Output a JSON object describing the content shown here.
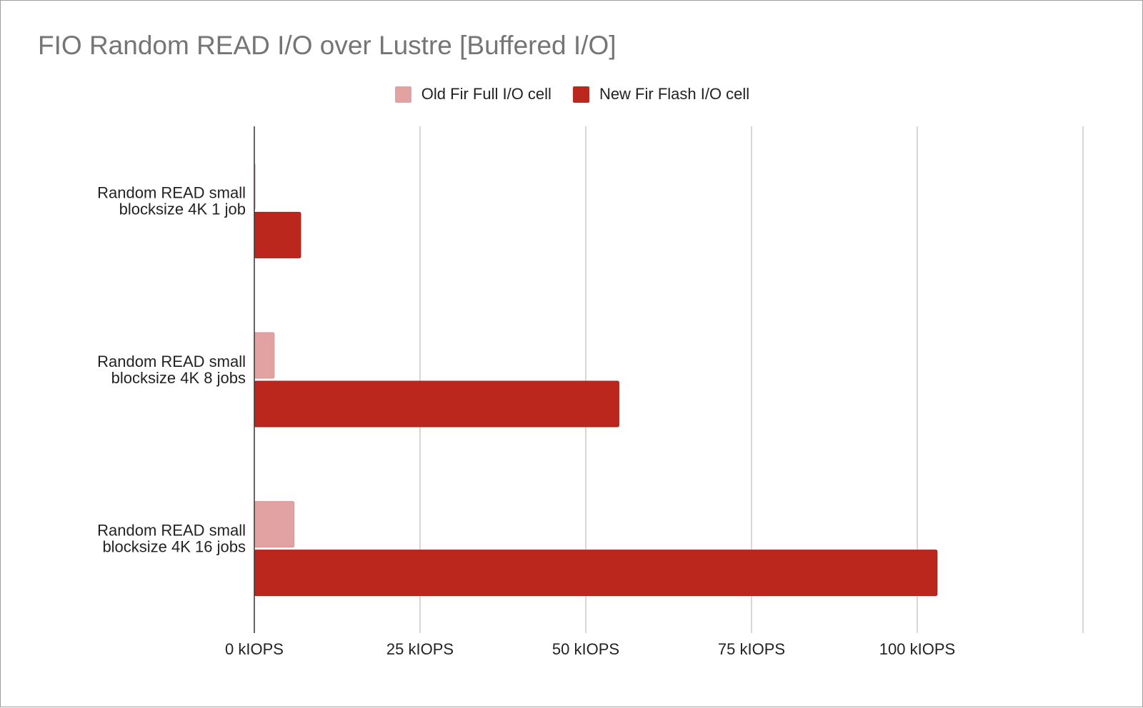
{
  "chart_data": {
    "type": "bar",
    "orientation": "horizontal",
    "title": "FIO Random READ I/O over Lustre [Buffered I/O]",
    "categories": [
      [
        "Random READ small",
        "blocksize 4K 1 job"
      ],
      [
        "Random READ small",
        "blocksize 4K 8 jobs"
      ],
      [
        "Random READ small",
        "blocksize 4K 16 jobs"
      ]
    ],
    "series": [
      {
        "name": "Old Fir Full I/O cell",
        "color": "#e2a2a2",
        "values": [
          0.1,
          3,
          6
        ]
      },
      {
        "name": "New Fir Flash I/O cell",
        "color": "#bb271d",
        "values": [
          7,
          55,
          103
        ]
      }
    ],
    "xlim": [
      0,
      125
    ],
    "ticks": [
      {
        "value": 0,
        "label": "0 kIOPS"
      },
      {
        "value": 25,
        "label": "25 kIOPS"
      },
      {
        "value": 50,
        "label": "50 kIOPS"
      },
      {
        "value": 75,
        "label": "75 kIOPS"
      },
      {
        "value": 100,
        "label": "100 kIOPS"
      },
      {
        "value": 125,
        "label": ""
      }
    ],
    "grid": true,
    "legend_position": "top-center"
  }
}
